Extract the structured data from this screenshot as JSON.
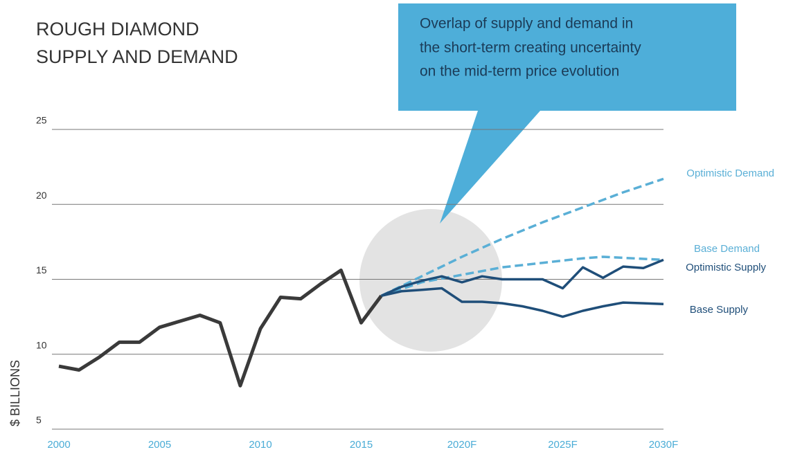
{
  "chart_data": {
    "type": "line",
    "title": [
      "ROUGH DIAMOND",
      "SUPPLY AND DEMAND"
    ],
    "annotation": [
      "Overlap of supply and demand in",
      "the short-term creating uncertainty",
      "on the mid-term price evolution"
    ],
    "y_label": "$ BILLIONS",
    "xlim": [
      2000,
      2030
    ],
    "xticks": [
      2000,
      2005,
      2010,
      2015,
      {
        "value": 2020,
        "label": "2020F"
      },
      {
        "value": 2025,
        "label": "2025F"
      },
      {
        "value": 2030,
        "label": "2030F"
      }
    ],
    "ylim": [
      5,
      25
    ],
    "yticks": [
      5,
      10,
      15,
      20,
      25
    ],
    "grid": true,
    "series": [
      {
        "color": "#3a3a3a",
        "style": "solid",
        "x": [
          2000,
          2001,
          2002,
          2003,
          2004,
          2005,
          2006,
          2007,
          2008,
          2009,
          2010,
          2011,
          2012,
          2013,
          2014,
          2015,
          2016
        ],
        "values": [
          9.2,
          8.95,
          9.8,
          10.8,
          10.8,
          11.8,
          12.2,
          12.6,
          12.1,
          7.9,
          11.7,
          13.8,
          13.7,
          14.7,
          15.6,
          12.1,
          13.9
        ]
      },
      {
        "name": "Optimistic Demand",
        "color": "#5aafd6",
        "style": "dashed",
        "x": [
          2016,
          2018,
          2020,
          2022,
          2024,
          2026,
          2028,
          2030
        ],
        "values": [
          13.9,
          15.2,
          16.5,
          17.7,
          18.8,
          19.8,
          20.8,
          21.7
        ]
      },
      {
        "name": "Base Demand",
        "color": "#5aafd6",
        "style": "dashed",
        "x": [
          2016,
          2018,
          2020,
          2022,
          2024,
          2026,
          2027,
          2030
        ],
        "values": [
          13.9,
          14.8,
          15.3,
          15.8,
          16.1,
          16.4,
          16.5,
          16.3
        ]
      },
      {
        "name": "Optimistic Supply",
        "color": "#1f4e79",
        "style": "solid",
        "x": [
          2016,
          2017,
          2018,
          2019,
          2020,
          2021,
          2022,
          2023,
          2024,
          2025,
          2026,
          2027,
          2028,
          2029,
          2030
        ],
        "values": [
          13.9,
          14.5,
          14.9,
          15.2,
          14.8,
          15.2,
          15.0,
          15.0,
          15.0,
          14.4,
          15.8,
          15.1,
          15.85,
          15.75,
          16.3
        ]
      },
      {
        "name": "Base Supply",
        "color": "#1f4e79",
        "style": "solid",
        "x": [
          2016,
          2017,
          2018,
          2019,
          2020,
          2021,
          2022,
          2023,
          2024,
          2025,
          2026,
          2027,
          2028,
          2029,
          2030
        ],
        "values": [
          13.9,
          14.2,
          14.3,
          14.4,
          13.5,
          13.5,
          13.4,
          13.2,
          12.9,
          12.5,
          12.9,
          13.2,
          13.45,
          13.4,
          13.35
        ]
      }
    ]
  }
}
